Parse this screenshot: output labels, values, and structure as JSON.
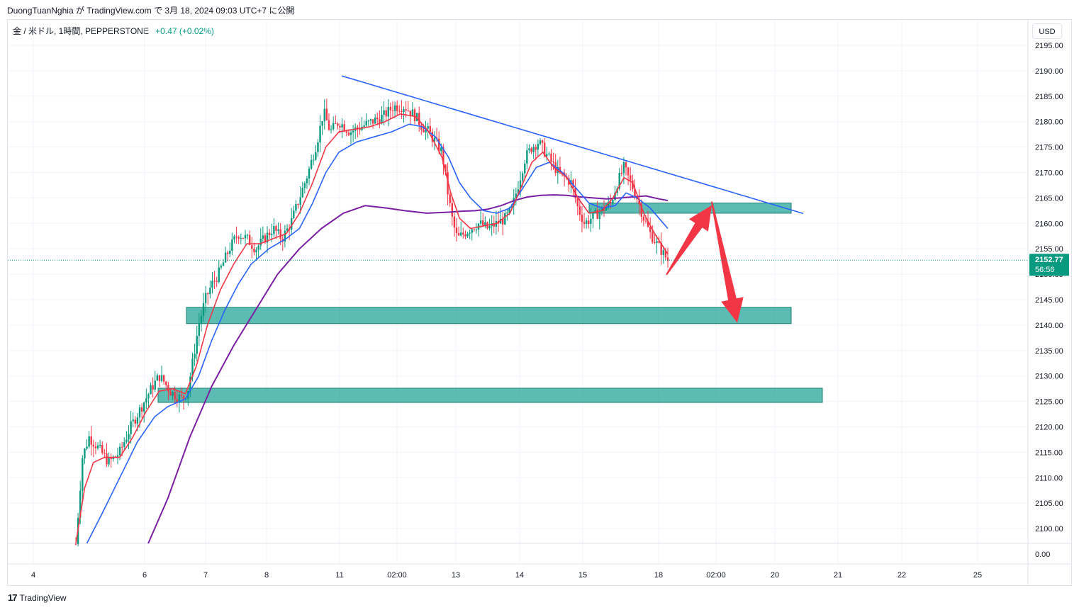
{
  "header": {
    "caption": "DuongTuanNghia が TradingView.com で 3月 18, 2024 09:03 UTC+7 に公開",
    "symbol": "金 / 米ドル, 1時間, PEPPERSTONE",
    "change": "+0.47 (+0.02%)",
    "currency_button": "USD"
  },
  "footer": {
    "logo_mark": "17",
    "logo_text": "TradingView"
  },
  "colors": {
    "up": "#089981",
    "down": "#f23645",
    "ema_fast": "#f23645",
    "ema_mid": "#2962ff",
    "ema_slow": "#7b1fa2",
    "trendline": "#2962ff",
    "zone_fill": "#26a69a",
    "arrow": "#f23645",
    "price_label": "#089981"
  },
  "chart_data": {
    "type": "candlestick",
    "y_axis": {
      "range": [
        2097,
        2196
      ],
      "ticks": [
        "2195.00",
        "2190.00",
        "2185.00",
        "2180.00",
        "2175.00",
        "2170.00",
        "2165.00",
        "2160.00",
        "2155.00",
        "2150.00",
        "2145.00",
        "2140.00",
        "2135.00",
        "2130.00",
        "2125.00",
        "2120.00",
        "2115.00",
        "2110.00",
        "2105.00",
        "2100.00"
      ],
      "sub_pane_tick": "0.00"
    },
    "x_axis": {
      "ticks": [
        "4",
        "6",
        "7",
        "8",
        "11",
        "02:00",
        "13",
        "14",
        "15",
        "18",
        "02:00",
        "20",
        "21",
        "22",
        "25"
      ]
    },
    "current_price": {
      "value": "2152.77",
      "countdown": "56:56",
      "price": 2152.77
    },
    "trendline": {
      "from": {
        "x": "11",
        "y": 2189
      },
      "to": {
        "x": "20",
        "y": 2162.5
      }
    },
    "zones": [
      {
        "name": "upper-resistance-zone",
        "from": "15",
        "to": "20",
        "low": 2162,
        "high": 2164
      },
      {
        "name": "middle-support-zone",
        "from": "7",
        "to": "20",
        "low": 2140.3,
        "high": 2143.5
      },
      {
        "name": "lower-support-zone",
        "from": "6",
        "to": "21",
        "low": 2124.8,
        "high": 2127.6
      }
    ],
    "projection_arrows": [
      {
        "from_price": 2151,
        "to_price": 2164,
        "direction": "up"
      },
      {
        "from_price": 2164,
        "to_price": 2141,
        "direction": "down"
      }
    ],
    "price_path": [
      [
        0,
        2097
      ],
      [
        0.3,
        2114
      ],
      [
        0.6,
        2118
      ],
      [
        1.0,
        2116
      ],
      [
        1.5,
        2113
      ],
      [
        2.0,
        2115
      ],
      [
        2.5,
        2120
      ],
      [
        3.0,
        2124
      ],
      [
        3.5,
        2128
      ],
      [
        3.8,
        2130
      ],
      [
        4.0,
        2129
      ],
      [
        4.3,
        2127
      ],
      [
        4.6,
        2126
      ],
      [
        4.9,
        2125.5
      ],
      [
        5.1,
        2127
      ],
      [
        5.3,
        2132
      ],
      [
        5.6,
        2140
      ],
      [
        5.9,
        2145
      ],
      [
        6.2,
        2148
      ],
      [
        6.5,
        2150
      ],
      [
        7.0,
        2155
      ],
      [
        7.4,
        2158
      ],
      [
        7.8,
        2157
      ],
      [
        8.2,
        2155
      ],
      [
        8.6,
        2157
      ],
      [
        9.0,
        2159
      ],
      [
        9.4,
        2157
      ],
      [
        9.8,
        2160
      ],
      [
        10.2,
        2165
      ],
      [
        10.6,
        2170
      ],
      [
        11.0,
        2176
      ],
      [
        11.3,
        2182
      ],
      [
        11.6,
        2178
      ],
      [
        12.0,
        2180
      ],
      [
        12.5,
        2178
      ],
      [
        13.0,
        2179
      ],
      [
        13.5,
        2180
      ],
      [
        14.0,
        2181
      ],
      [
        14.5,
        2183
      ],
      [
        15.0,
        2183
      ],
      [
        15.5,
        2181
      ],
      [
        15.8,
        2179
      ],
      [
        16.1,
        2178
      ],
      [
        16.4,
        2176
      ],
      [
        16.7,
        2174
      ],
      [
        17.0,
        2165
      ],
      [
        17.2,
        2160
      ],
      [
        17.4,
        2157
      ],
      [
        17.7,
        2158
      ],
      [
        18.0,
        2159
      ],
      [
        18.4,
        2160
      ],
      [
        18.8,
        2159
      ],
      [
        19.2,
        2160
      ],
      [
        19.6,
        2161
      ],
      [
        19.9,
        2163
      ],
      [
        20.2,
        2168
      ],
      [
        20.5,
        2173
      ],
      [
        20.8,
        2175
      ],
      [
        21.1,
        2176
      ],
      [
        21.4,
        2174
      ],
      [
        21.7,
        2172
      ],
      [
        22.0,
        2170
      ],
      [
        22.3,
        2169
      ],
      [
        22.6,
        2168
      ],
      [
        22.9,
        2163
      ],
      [
        23.2,
        2160
      ],
      [
        23.5,
        2161
      ],
      [
        23.8,
        2162
      ],
      [
        24.1,
        2163
      ],
      [
        24.4,
        2164
      ],
      [
        24.7,
        2168
      ],
      [
        25.0,
        2171
      ],
      [
        25.3,
        2168
      ],
      [
        25.6,
        2165
      ],
      [
        25.9,
        2161
      ],
      [
        26.2,
        2158
      ],
      [
        26.5,
        2156
      ],
      [
        26.8,
        2154
      ],
      [
        27.0,
        2152.77
      ]
    ],
    "ema_fast_path": [
      [
        0,
        2097
      ],
      [
        0.4,
        2108
      ],
      [
        0.8,
        2113
      ],
      [
        1.3,
        2114
      ],
      [
        2.0,
        2114
      ],
      [
        2.6,
        2118
      ],
      [
        3.2,
        2123
      ],
      [
        3.8,
        2127
      ],
      [
        4.4,
        2127.5
      ],
      [
        5.0,
        2126.5
      ],
      [
        5.5,
        2132
      ],
      [
        6.0,
        2140
      ],
      [
        6.6,
        2147
      ],
      [
        7.2,
        2152
      ],
      [
        7.8,
        2156
      ],
      [
        8.4,
        2156
      ],
      [
        9.0,
        2157
      ],
      [
        9.6,
        2158
      ],
      [
        10.2,
        2162
      ],
      [
        10.8,
        2168
      ],
      [
        11.4,
        2175
      ],
      [
        12.0,
        2178
      ],
      [
        12.7,
        2178.5
      ],
      [
        13.4,
        2179
      ],
      [
        14.1,
        2180
      ],
      [
        14.8,
        2181.5
      ],
      [
        15.5,
        2181
      ],
      [
        16.1,
        2178
      ],
      [
        16.7,
        2173
      ],
      [
        17.1,
        2166
      ],
      [
        17.5,
        2161
      ],
      [
        18.0,
        2159
      ],
      [
        18.6,
        2159.5
      ],
      [
        19.2,
        2160
      ],
      [
        19.8,
        2162
      ],
      [
        20.3,
        2167
      ],
      [
        20.8,
        2172
      ],
      [
        21.3,
        2174
      ],
      [
        21.8,
        2171
      ],
      [
        22.4,
        2169
      ],
      [
        22.9,
        2165
      ],
      [
        23.4,
        2162
      ],
      [
        24.0,
        2162.5
      ],
      [
        24.5,
        2165
      ],
      [
        25.0,
        2169
      ],
      [
        25.4,
        2168
      ],
      [
        25.9,
        2162
      ],
      [
        26.4,
        2158
      ],
      [
        27.0,
        2154
      ]
    ],
    "ema_mid_path": [
      [
        0.5,
        2097
      ],
      [
        1.2,
        2103
      ],
      [
        2.0,
        2110
      ],
      [
        2.8,
        2117
      ],
      [
        3.6,
        2122
      ],
      [
        4.2,
        2124
      ],
      [
        5.0,
        2125.5
      ],
      [
        5.6,
        2130
      ],
      [
        6.2,
        2137
      ],
      [
        6.8,
        2143
      ],
      [
        7.4,
        2148
      ],
      [
        8.0,
        2152
      ],
      [
        8.8,
        2155
      ],
      [
        9.6,
        2157
      ],
      [
        10.2,
        2159
      ],
      [
        10.8,
        2164
      ],
      [
        11.4,
        2170
      ],
      [
        12.0,
        2174
      ],
      [
        12.8,
        2176
      ],
      [
        13.6,
        2177
      ],
      [
        14.4,
        2178
      ],
      [
        15.2,
        2179.5
      ],
      [
        15.8,
        2179
      ],
      [
        16.4,
        2177
      ],
      [
        17.0,
        2173
      ],
      [
        17.5,
        2168
      ],
      [
        18.0,
        2165
      ],
      [
        18.6,
        2162.5
      ],
      [
        19.2,
        2162
      ],
      [
        19.8,
        2163
      ],
      [
        20.4,
        2167
      ],
      [
        21.0,
        2171
      ],
      [
        21.6,
        2172
      ],
      [
        22.2,
        2170
      ],
      [
        22.8,
        2167
      ],
      [
        23.4,
        2164
      ],
      [
        24.0,
        2163
      ],
      [
        24.6,
        2163.5
      ],
      [
        25.1,
        2166
      ],
      [
        25.6,
        2165
      ],
      [
        26.2,
        2163
      ],
      [
        26.8,
        2160
      ],
      [
        27.0,
        2159
      ]
    ],
    "ema_slow_path": [
      [
        3.3,
        2097
      ],
      [
        4.2,
        2106
      ],
      [
        5.2,
        2118
      ],
      [
        6.2,
        2128
      ],
      [
        7.2,
        2136
      ],
      [
        8.2,
        2143
      ],
      [
        9.2,
        2150
      ],
      [
        10.2,
        2155
      ],
      [
        11.2,
        2159
      ],
      [
        12.2,
        2162
      ],
      [
        13.2,
        2163.5
      ],
      [
        14.2,
        2163
      ],
      [
        15.0,
        2162.5
      ],
      [
        16.0,
        2162
      ],
      [
        17.0,
        2162.2
      ],
      [
        17.6,
        2162.4
      ],
      [
        18.2,
        2162.5
      ],
      [
        18.8,
        2162.8
      ],
      [
        19.4,
        2163.5
      ],
      [
        20.0,
        2164.5
      ],
      [
        20.6,
        2165.2
      ],
      [
        21.2,
        2165.5
      ],
      [
        21.8,
        2165.6
      ],
      [
        22.4,
        2165.5
      ],
      [
        23.0,
        2165.2
      ],
      [
        23.6,
        2165
      ],
      [
        24.2,
        2164.8
      ],
      [
        24.8,
        2165
      ],
      [
        25.4,
        2165.2
      ],
      [
        26.0,
        2165.4
      ],
      [
        26.6,
        2164.8
      ],
      [
        27.0,
        2164.5
      ]
    ]
  }
}
